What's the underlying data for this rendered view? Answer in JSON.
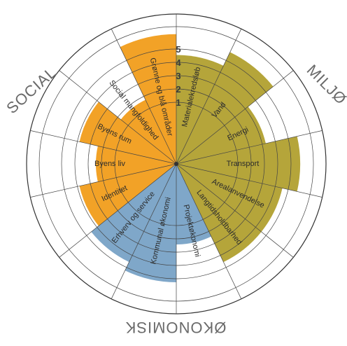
{
  "chart_data": {
    "type": "radial-bar",
    "scale": {
      "min": 0,
      "max": 5,
      "ticks": [
        "1",
        "2",
        "3",
        "4",
        "5"
      ]
    },
    "groups": [
      {
        "name": "SOCIAL",
        "color": "#F2A227"
      },
      {
        "name": "MILJØ",
        "color": "#B5A53A"
      },
      {
        "name": "ØKONOMISK",
        "color": "#7FA7C9"
      }
    ],
    "sectors": [
      {
        "label": "Materialekredsløb",
        "group": "MILJØ",
        "value": 3.5
      },
      {
        "label": "Vand",
        "group": "MILJØ",
        "value": 4.3
      },
      {
        "label": "Energi",
        "group": "MILJØ",
        "value": 2.6
      },
      {
        "label": "Transport",
        "group": "MILJØ",
        "value": 4.3
      },
      {
        "label": "Arealanvendelse",
        "group": "MILJØ",
        "value": 3.5
      },
      {
        "label": "Langtidsholdbarhed",
        "group": "MILJØ",
        "value": 3.5
      },
      {
        "label": "Projektøkonomi",
        "group": "ØKONOMISK",
        "value": 2.0
      },
      {
        "label": "Kommunal økonomi",
        "group": "ØKONOMISK",
        "value": 4.0
      },
      {
        "label": "Erhverv og service",
        "group": "ØKONOMISK",
        "value": 3.5
      },
      {
        "label": "Identitet",
        "group": "SOCIAL",
        "value": 3.0
      },
      {
        "label": "Byens liv",
        "group": "SOCIAL",
        "value": 2.0
      },
      {
        "label": "Byens rum",
        "group": "SOCIAL",
        "value": 3.0
      },
      {
        "label": "Social mangfoldighed",
        "group": "SOCIAL",
        "value": 1.5
      },
      {
        "label": "Grønne og blå områder",
        "group": "SOCIAL",
        "value": 4.6
      }
    ]
  }
}
